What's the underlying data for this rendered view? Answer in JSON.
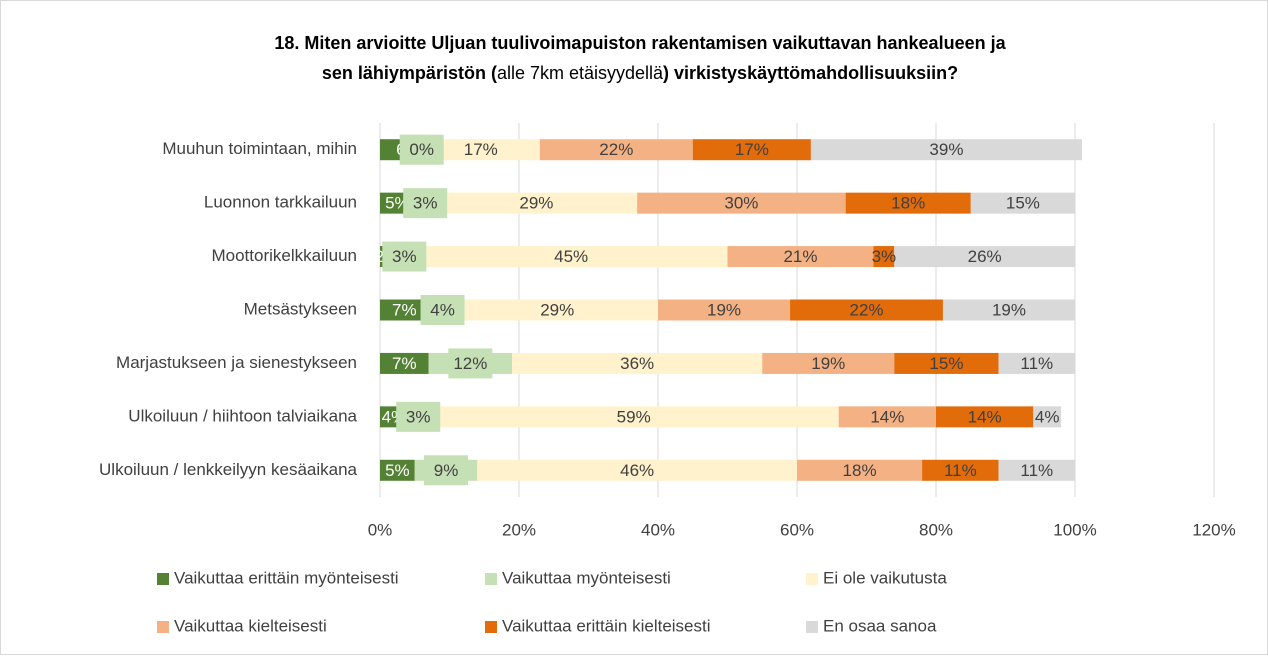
{
  "chart_data": {
    "type": "stacked_bar_horizontal",
    "title_line1": "18. Miten arvioitte Uljuan tuulivoimapuiston rakentamisen vaikuttavan hankealueen ja",
    "title_line2": [
      "sen lähiympäristön (",
      "alle 7km etäisyydellä",
      ") virkistyskäyttömahdollisuuksiin?"
    ],
    "categories": [
      "Muuhun toimintaan, mihin",
      "Luonnon tarkkailuun",
      "Moottorikelkkailuun",
      "Metsästykseen",
      "Marjastukseen ja sienestykseen",
      "Ulkoiluun / hiihtoon talviaikana",
      "Ulkoiluun / lenkkeilyyn kesäaikana"
    ],
    "series": [
      {
        "name": "Vaikuttaa erittäin myönteisesti",
        "color": "#548235",
        "values": [
          6,
          5,
          2,
          7,
          7,
          4,
          5
        ],
        "value_labels": [
          "6",
          "5%",
          "2%",
          "7%",
          "7%",
          "4%",
          "5%"
        ]
      },
      {
        "name": "Vaikuttaa myönteisesti",
        "color": "#c5e0b4",
        "values": [
          0,
          3,
          3,
          4,
          12,
          3,
          9
        ],
        "value_labels": [
          "0%",
          "3%",
          "3%",
          "4%",
          "12%",
          "3%",
          "9%"
        ]
      },
      {
        "name": "Ei ole vaikutusta",
        "color": "#fff2cc",
        "values": [
          17,
          29,
          45,
          29,
          36,
          59,
          46
        ],
        "value_labels": [
          "17%",
          "29%",
          "45%",
          "29%",
          "36%",
          "59%",
          "46%"
        ]
      },
      {
        "name": "Vaikuttaa kielteisesti",
        "color": "#f4b183",
        "values": [
          22,
          30,
          21,
          19,
          19,
          14,
          18
        ],
        "value_labels": [
          "22%",
          "30%",
          "21%",
          "19%",
          "19%",
          "14%",
          "18%"
        ]
      },
      {
        "name": "Vaikuttaa erittäin kielteisesti",
        "color": "#e26b0a",
        "values": [
          17,
          18,
          3,
          22,
          15,
          14,
          11
        ],
        "value_labels": [
          "17%",
          "18%",
          "3%",
          "22%",
          "15%",
          "14%",
          "11%"
        ]
      },
      {
        "name": "En osaa sanoa",
        "color": "#d9d9d9",
        "values": [
          39,
          15,
          26,
          19,
          11,
          4,
          11
        ],
        "value_labels": [
          "39%",
          "15%",
          "26%",
          "19%",
          "11%",
          "4%",
          "11%"
        ]
      }
    ],
    "xlim": [
      0,
      120
    ],
    "xticks": [
      {
        "value": 0,
        "label": "0%"
      },
      {
        "value": 20,
        "label": "20%"
      },
      {
        "value": 40,
        "label": "40%"
      },
      {
        "value": 60,
        "label": "60%"
      },
      {
        "value": 80,
        "label": "80%"
      },
      {
        "value": 100,
        "label": "100%"
      },
      {
        "value": 120,
        "label": "120%"
      }
    ],
    "grid": true
  }
}
